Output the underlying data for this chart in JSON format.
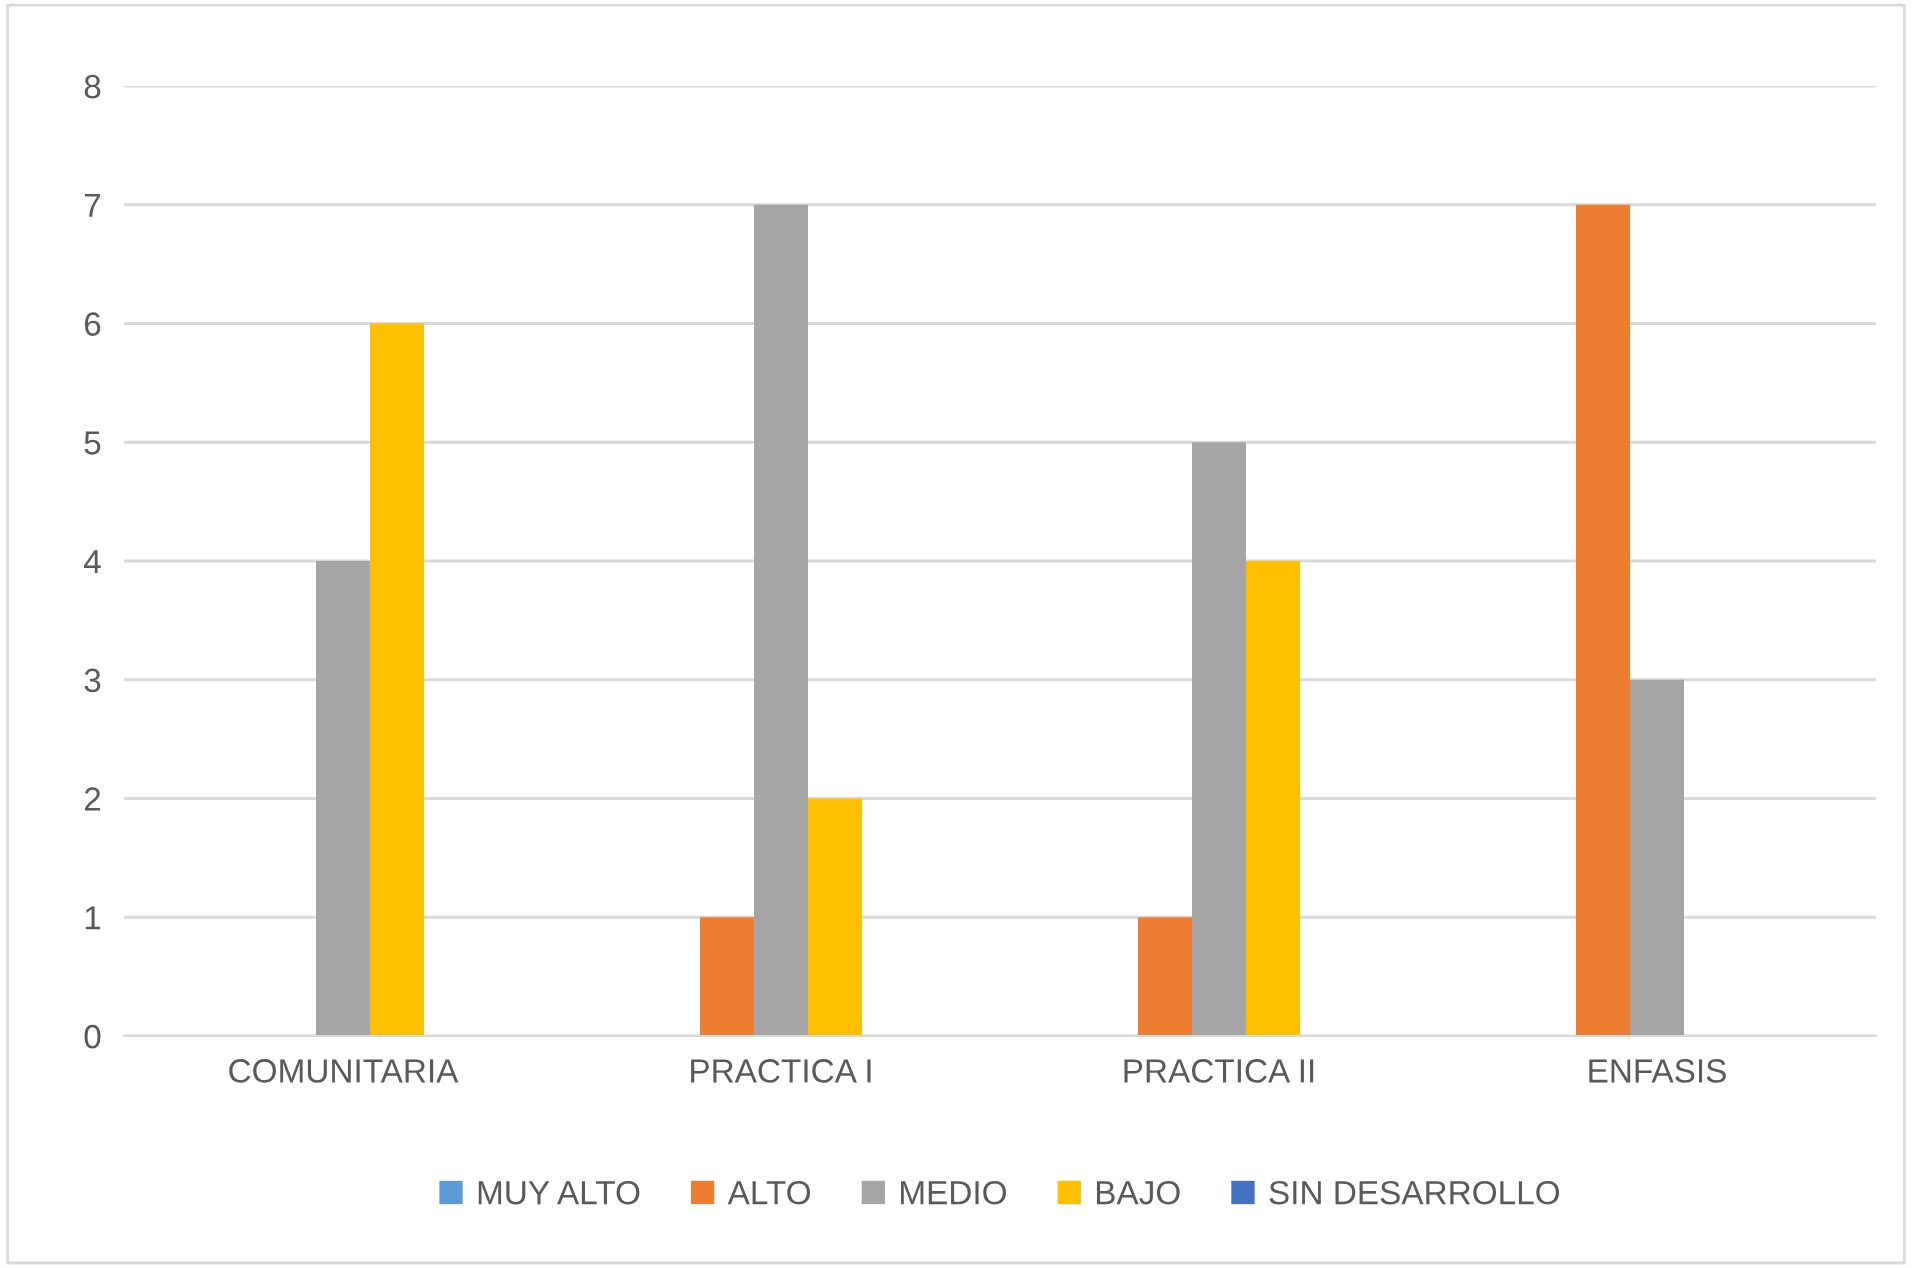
{
  "chart_data": {
    "type": "bar",
    "categories": [
      "COMUNITARIA",
      "PRACTICA I",
      "PRACTICA II",
      "ENFASIS"
    ],
    "series": [
      {
        "name": "MUY ALTO",
        "color": "#5b9bd5",
        "values": [
          0,
          0,
          0,
          0
        ]
      },
      {
        "name": "ALTO",
        "color": "#ed7d31",
        "values": [
          0,
          1,
          1,
          7
        ]
      },
      {
        "name": "MEDIO",
        "color": "#a5a5a5",
        "values": [
          4,
          7,
          5,
          3
        ]
      },
      {
        "name": "BAJO",
        "color": "#ffc000",
        "values": [
          6,
          2,
          4,
          0
        ]
      },
      {
        "name": "SIN DESARROLLO",
        "color": "#4472c4",
        "values": [
          0,
          0,
          0,
          0
        ]
      }
    ],
    "ylim": [
      0,
      8
    ],
    "yticks": [
      0,
      1,
      2,
      3,
      4,
      5,
      6,
      7,
      8
    ],
    "grid": "y",
    "legend": "bottom"
  }
}
